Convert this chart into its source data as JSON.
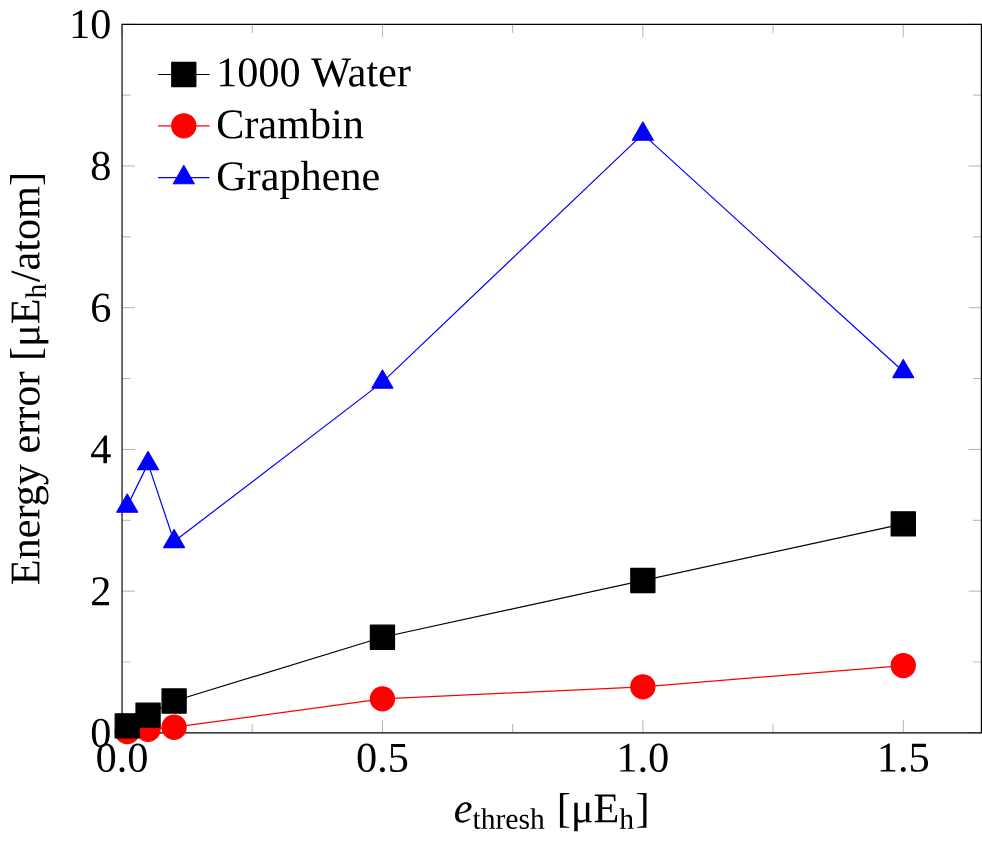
{
  "chart_data": {
    "type": "line",
    "xlabel": "*e*$_{thresh}$ [μE$_{h}$]",
    "ylabel": "Energy error [μE$_{h}$/atom]",
    "xlim": [
      0,
      1.65
    ],
    "ylim": [
      0,
      10
    ],
    "xticks": [
      {
        "value": 0,
        "label": "0.0"
      },
      0.5,
      {
        "value": 1,
        "label": "1.0"
      },
      1.5
    ],
    "yticks": [
      0,
      2,
      4,
      6,
      8,
      10
    ],
    "legend": "top left",
    "grid": false,
    "series": [
      {
        "name": "1000 Water",
        "color": "#000000",
        "marker": "square",
        "x": [
          0.01,
          0.05,
          0.1,
          0.5,
          1.0,
          1.5
        ],
        "values": [
          0.1,
          0.25,
          0.45,
          1.35,
          2.15,
          2.95
        ]
      },
      {
        "name": "Crambin",
        "color": "#ff0000",
        "marker": "circle",
        "x": [
          0.01,
          0.05,
          0.1,
          0.5,
          1.0,
          1.5
        ],
        "values": [
          0.02,
          0.05,
          0.08,
          0.48,
          0.65,
          0.95
        ]
      },
      {
        "name": "Graphene",
        "color": "#0000ff",
        "marker": "triangle",
        "x": [
          0.01,
          0.05,
          0.1,
          0.5,
          1.0,
          1.5
        ],
        "values": [
          3.2,
          3.8,
          2.7,
          4.95,
          8.45,
          5.1
        ]
      }
    ]
  }
}
